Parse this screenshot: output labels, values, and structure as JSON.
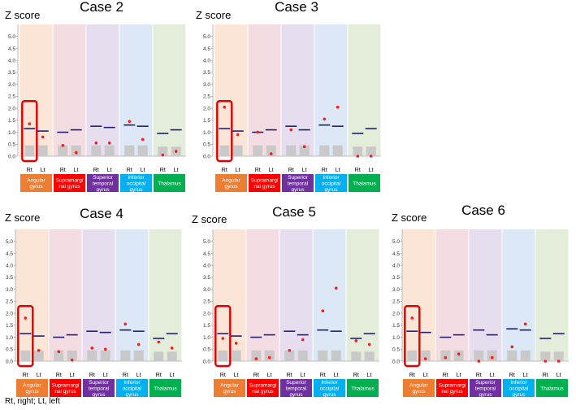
{
  "footnote": "Rt, right; Lt, left",
  "chart_data": [
    {
      "type": "bar",
      "title": "Case 2",
      "ylabel": "Z score",
      "ylim": [
        0,
        5.5
      ],
      "yticks": [
        "0.0",
        "0.5",
        "1.0",
        "1.5",
        "2.0",
        "2.5",
        "3.0",
        "3.5",
        "4.0",
        "4.5",
        "5.0"
      ],
      "x_sides": [
        "Rt",
        "Lt"
      ],
      "regions": [
        {
          "label_lines": [
            "Angular",
            "gyrus"
          ],
          "color": "#ED7D31",
          "bg": "#FBE5D6",
          "highlight": true,
          "bar": [
            0.45,
            0.45
          ],
          "threshold": [
            1.15,
            1.05
          ],
          "value": [
            1.35,
            0.8
          ]
        },
        {
          "label_lines": [
            "Supramargi",
            "nal gyrus"
          ],
          "color": "#FF0000",
          "bg": "#F4DDE2",
          "highlight": false,
          "bar": [
            0.45,
            0.45
          ],
          "threshold": [
            1.0,
            1.1
          ],
          "value": [
            0.45,
            0.15
          ]
        },
        {
          "label_lines": [
            "Superior",
            "temporal",
            "gyrus"
          ],
          "color": "#7030A0",
          "bg": "#E6DEEF",
          "highlight": false,
          "bar": [
            0.45,
            0.45
          ],
          "threshold": [
            1.25,
            1.2
          ],
          "value": [
            0.55,
            0.55
          ]
        },
        {
          "label_lines": [
            "Inferior",
            "occipital",
            "gyrus"
          ],
          "color": "#00B0F0",
          "bg": "#DCE8F5",
          "highlight": false,
          "bar": [
            0.45,
            0.45
          ],
          "threshold": [
            1.3,
            1.25
          ],
          "value": [
            1.45,
            0.7
          ]
        },
        {
          "label_lines": [
            "Thalamus"
          ],
          "color": "#00B050",
          "bg": "#E4EDDA",
          "highlight": false,
          "bar": [
            0.4,
            0.4
          ],
          "threshold": [
            0.95,
            1.1
          ],
          "value": [
            0.05,
            0.2
          ]
        }
      ]
    },
    {
      "type": "bar",
      "title": "Case 3",
      "ylabel": "Z score",
      "ylim": [
        0,
        5.5
      ],
      "yticks": [
        "0.0",
        "0.5",
        "1.0",
        "1.5",
        "2.0",
        "2.5",
        "3.0",
        "3.5",
        "4.0",
        "4.5",
        "5.0"
      ],
      "x_sides": [
        "Rt",
        "Lt"
      ],
      "regions": [
        {
          "label_lines": [
            "Angular",
            "gyrus"
          ],
          "color": "#ED7D31",
          "bg": "#FBE5D6",
          "highlight": true,
          "bar": [
            0.45,
            0.45
          ],
          "threshold": [
            1.15,
            1.05
          ],
          "value": [
            2.05,
            0.9
          ]
        },
        {
          "label_lines": [
            "Supramargi",
            "nal gyrus"
          ],
          "color": "#FF0000",
          "bg": "#F4DDE2",
          "highlight": false,
          "bar": [
            0.45,
            0.45
          ],
          "threshold": [
            1.0,
            1.1
          ],
          "value": [
            1.0,
            0.1
          ]
        },
        {
          "label_lines": [
            "Superior",
            "temporal",
            "gyrus"
          ],
          "color": "#7030A0",
          "bg": "#E6DEEF",
          "highlight": false,
          "bar": [
            0.45,
            0.45
          ],
          "threshold": [
            1.25,
            1.1
          ],
          "value": [
            1.1,
            0.4
          ]
        },
        {
          "label_lines": [
            "Inferior",
            "occipital",
            "gyrus"
          ],
          "color": "#00B0F0",
          "bg": "#DCE8F5",
          "highlight": false,
          "bar": [
            0.45,
            0.45
          ],
          "threshold": [
            1.3,
            1.25
          ],
          "value": [
            1.55,
            2.05
          ]
        },
        {
          "label_lines": [
            "Thalamus"
          ],
          "color": "#00B050",
          "bg": "#E4EDDA",
          "highlight": false,
          "bar": [
            0.4,
            0.4
          ],
          "threshold": [
            0.95,
            1.15
          ],
          "value": [
            0.0,
            0.0
          ]
        }
      ]
    },
    {
      "type": "bar",
      "title": "Case 4",
      "ylabel": "Z score",
      "ylim": [
        0,
        5.5
      ],
      "yticks": [
        "0.0",
        "0.5",
        "1.0",
        "1.5",
        "2.0",
        "2.5",
        "3.0",
        "3.5",
        "4.0",
        "4.5",
        "5.0"
      ],
      "x_sides": [
        "Rt",
        "Lt"
      ],
      "regions": [
        {
          "label_lines": [
            "Angular",
            "gyrus"
          ],
          "color": "#ED7D31",
          "bg": "#FBE5D6",
          "highlight": true,
          "bar": [
            0.45,
            0.45
          ],
          "threshold": [
            1.15,
            1.05
          ],
          "value": [
            1.8,
            0.45
          ]
        },
        {
          "label_lines": [
            "Supramargi",
            "nal gyrus"
          ],
          "color": "#FF0000",
          "bg": "#F4DDE2",
          "highlight": false,
          "bar": [
            0.45,
            0.45
          ],
          "threshold": [
            1.0,
            1.1
          ],
          "value": [
            0.4,
            0.05
          ]
        },
        {
          "label_lines": [
            "Superior",
            "temporal",
            "gyrus"
          ],
          "color": "#7030A0",
          "bg": "#E6DEEF",
          "highlight": false,
          "bar": [
            0.45,
            0.45
          ],
          "threshold": [
            1.25,
            1.2
          ],
          "value": [
            0.55,
            0.5
          ]
        },
        {
          "label_lines": [
            "Inferior",
            "occipital",
            "gyrus"
          ],
          "color": "#00B0F0",
          "bg": "#DCE8F5",
          "highlight": false,
          "bar": [
            0.45,
            0.45
          ],
          "threshold": [
            1.3,
            1.25
          ],
          "value": [
            1.55,
            0.7
          ]
        },
        {
          "label_lines": [
            "Thalamus"
          ],
          "color": "#00B050",
          "bg": "#E4EDDA",
          "highlight": false,
          "bar": [
            0.4,
            0.4
          ],
          "threshold": [
            0.95,
            1.15
          ],
          "value": [
            0.8,
            0.55
          ]
        }
      ]
    },
    {
      "type": "bar",
      "title": "Case 5",
      "ylabel": "Z score",
      "ylim": [
        0,
        5.5
      ],
      "yticks": [
        "0.0",
        "0.5",
        "1.0",
        "1.5",
        "2.0",
        "2.5",
        "3.0",
        "3.5",
        "4.0",
        "4.5",
        "5.0"
      ],
      "x_sides": [
        "Rt",
        "Lt"
      ],
      "regions": [
        {
          "label_lines": [
            "Angular",
            "gyrus"
          ],
          "color": "#ED7D31",
          "bg": "#FBE5D6",
          "highlight": true,
          "bar": [
            0.45,
            0.45
          ],
          "threshold": [
            1.15,
            1.05
          ],
          "value": [
            0.95,
            0.75
          ]
        },
        {
          "label_lines": [
            "Supramargi",
            "nal gyrus"
          ],
          "color": "#FF0000",
          "bg": "#F4DDE2",
          "highlight": false,
          "bar": [
            0.45,
            0.45
          ],
          "threshold": [
            1.0,
            1.1
          ],
          "value": [
            0.1,
            0.15
          ]
        },
        {
          "label_lines": [
            "Superior",
            "temporal",
            "gyrus"
          ],
          "color": "#7030A0",
          "bg": "#E6DEEF",
          "highlight": false,
          "bar": [
            0.45,
            0.45
          ],
          "threshold": [
            1.25,
            1.1
          ],
          "value": [
            0.45,
            0.9
          ]
        },
        {
          "label_lines": [
            "Inferior",
            "occipital",
            "gyrus"
          ],
          "color": "#00B0F0",
          "bg": "#DCE8F5",
          "highlight": false,
          "bar": [
            0.45,
            0.45
          ],
          "threshold": [
            1.3,
            1.25
          ],
          "value": [
            2.1,
            3.05
          ]
        },
        {
          "label_lines": [
            "Thalamus"
          ],
          "color": "#00B050",
          "bg": "#E4EDDA",
          "highlight": false,
          "bar": [
            0.4,
            0.4
          ],
          "threshold": [
            0.95,
            1.15
          ],
          "value": [
            0.85,
            0.7
          ]
        }
      ]
    },
    {
      "type": "bar",
      "title": "Case 6",
      "ylabel": "Z score",
      "ylim": [
        0,
        5.5
      ],
      "yticks": [
        "0.0",
        "0.5",
        "1.0",
        "1.5",
        "2.0",
        "2.5",
        "3.0",
        "3.5",
        "4.0",
        "4.5",
        "5.0"
      ],
      "x_sides": [
        "Rt",
        "Lt"
      ],
      "regions": [
        {
          "label_lines": [
            "Angular",
            "gyrus"
          ],
          "color": "#ED7D31",
          "bg": "#FBE5D6",
          "highlight": true,
          "bar": [
            0.45,
            0.45
          ],
          "threshold": [
            1.25,
            1.2
          ],
          "value": [
            1.8,
            0.1
          ]
        },
        {
          "label_lines": [
            "Supramargi",
            "nal gyrus"
          ],
          "color": "#FF0000",
          "bg": "#F4DDE2",
          "highlight": false,
          "bar": [
            0.45,
            0.45
          ],
          "threshold": [
            1.0,
            1.1
          ],
          "value": [
            0.15,
            0.3
          ]
        },
        {
          "label_lines": [
            "Superior",
            "temporal",
            "gyrus"
          ],
          "color": "#7030A0",
          "bg": "#E6DEEF",
          "highlight": false,
          "bar": [
            0.45,
            0.45
          ],
          "threshold": [
            1.3,
            1.1
          ],
          "value": [
            0.0,
            0.15
          ]
        },
        {
          "label_lines": [
            "Inferior",
            "occipital",
            "gyrus"
          ],
          "color": "#00B0F0",
          "bg": "#DCE8F5",
          "highlight": false,
          "bar": [
            0.45,
            0.45
          ],
          "threshold": [
            1.35,
            1.3
          ],
          "value": [
            0.6,
            1.55
          ]
        },
        {
          "label_lines": [
            "Thalamus"
          ],
          "color": "#00B050",
          "bg": "#E4EDDA",
          "highlight": false,
          "bar": [
            0.4,
            0.4
          ],
          "threshold": [
            0.95,
            1.15
          ],
          "value": [
            0.0,
            0.0
          ]
        }
      ]
    }
  ]
}
